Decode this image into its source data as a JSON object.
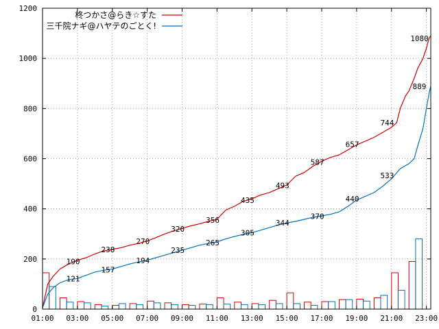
{
  "chart_data": {
    "type": "line",
    "title": "",
    "xlabel": "",
    "ylabel": "",
    "xlim": [
      1,
      23.25
    ],
    "ylim": [
      0,
      1200
    ],
    "x_tick_labels": [
      "01:00",
      "03:00",
      "05:00",
      "07:00",
      "09:00",
      "11:00",
      "13:00",
      "15:00",
      "17:00",
      "19:00",
      "21:00",
      "23:00"
    ],
    "x_tick_values": [
      1,
      3,
      5,
      7,
      9,
      11,
      13,
      15,
      17,
      19,
      21,
      23
    ],
    "y_tick_values": [
      0,
      200,
      400,
      600,
      800,
      1000,
      1200
    ],
    "y_tick_labels": [
      "0",
      "200",
      "400",
      "600",
      "800",
      "1000",
      "1200"
    ],
    "grid": true,
    "legend_position": "top-left",
    "series": [
      {
        "name": "柊つかさ@らき☆すた",
        "color": "#cc0000",
        "x": [
          1.0,
          1.3,
          1.6,
          2.0,
          2.5,
          3.0,
          3.5,
          4.0,
          4.5,
          5.0,
          5.5,
          6.0,
          6.5,
          7.0,
          7.5,
          8.0,
          8.5,
          9.0,
          9.5,
          10.0,
          10.5,
          11.0,
          11.5,
          12.0,
          12.5,
          13.0,
          13.5,
          14.0,
          14.5,
          15.0,
          15.5,
          16.0,
          16.5,
          17.0,
          17.5,
          18.0,
          18.5,
          19.0,
          19.5,
          20.0,
          20.5,
          21.0,
          21.3,
          21.5,
          21.8,
          22.0,
          22.3,
          22.5,
          22.8,
          23.0,
          23.15,
          23.25
        ],
        "values": [
          5,
          100,
          130,
          160,
          180,
          195,
          205,
          220,
          232,
          238,
          245,
          255,
          262,
          272,
          285,
          300,
          312,
          322,
          332,
          340,
          350,
          358,
          395,
          410,
          430,
          440,
          455,
          465,
          480,
          495,
          530,
          545,
          570,
          590,
          605,
          615,
          635,
          655,
          670,
          685,
          705,
          725,
          744,
          800,
          850,
          870,
          920,
          960,
          1000,
          1040,
          1080,
          1090
        ],
        "labels": [
          {
            "x": 2.75,
            "value": 190,
            "text": "190"
          },
          {
            "x": 4.75,
            "value": 238,
            "text": "238"
          },
          {
            "x": 6.75,
            "value": 270,
            "text": "270"
          },
          {
            "x": 8.75,
            "value": 320,
            "text": "320"
          },
          {
            "x": 10.75,
            "value": 356,
            "text": "356"
          },
          {
            "x": 12.75,
            "value": 435,
            "text": "435"
          },
          {
            "x": 14.75,
            "value": 493,
            "text": "493"
          },
          {
            "x": 16.75,
            "value": 587,
            "text": "587"
          },
          {
            "x": 18.75,
            "value": 657,
            "text": "657"
          },
          {
            "x": 20.75,
            "value": 744,
            "text": "744"
          },
          {
            "x": 22.6,
            "value": 1080,
            "text": "1080"
          }
        ]
      },
      {
        "name": "三千院ナギ@ハヤテのごとく!",
        "color": "#0070c0",
        "x": [
          1.0,
          1.3,
          1.6,
          2.0,
          2.5,
          3.0,
          3.5,
          4.0,
          4.5,
          5.0,
          5.5,
          6.0,
          6.5,
          7.0,
          7.5,
          8.0,
          8.5,
          9.0,
          9.5,
          10.0,
          10.5,
          11.0,
          11.5,
          12.0,
          12.5,
          13.0,
          13.5,
          14.0,
          14.5,
          15.0,
          15.5,
          16.0,
          16.5,
          17.0,
          17.5,
          18.0,
          18.5,
          19.0,
          19.5,
          20.0,
          20.5,
          21.0,
          21.5,
          22.0,
          22.3,
          22.5,
          22.8,
          23.0,
          23.15,
          23.25
        ],
        "values": [
          5,
          60,
          85,
          105,
          118,
          122,
          135,
          148,
          155,
          160,
          170,
          180,
          188,
          195,
          205,
          215,
          225,
          235,
          245,
          255,
          262,
          268,
          280,
          290,
          298,
          305,
          315,
          325,
          335,
          344,
          350,
          358,
          366,
          372,
          378,
          388,
          410,
          435,
          450,
          465,
          490,
          520,
          560,
          580,
          600,
          650,
          720,
          800,
          860,
          889
        ],
        "labels": [
          {
            "x": 2.75,
            "value": 121,
            "text": "121"
          },
          {
            "x": 4.75,
            "value": 157,
            "text": "157"
          },
          {
            "x": 6.75,
            "value": 194,
            "text": "194"
          },
          {
            "x": 8.75,
            "value": 235,
            "text": "235"
          },
          {
            "x": 10.75,
            "value": 265,
            "text": "265"
          },
          {
            "x": 12.75,
            "value": 305,
            "text": "305"
          },
          {
            "x": 14.75,
            "value": 344,
            "text": "344"
          },
          {
            "x": 16.75,
            "value": 370,
            "text": "370"
          },
          {
            "x": 18.75,
            "value": 440,
            "text": "440"
          },
          {
            "x": 20.75,
            "value": 533,
            "text": "533"
          },
          {
            "x": 22.6,
            "value": 889,
            "text": "889"
          }
        ]
      }
    ],
    "hourly_bars": {
      "hours": [
        1,
        2,
        3,
        4,
        5,
        6,
        7,
        8,
        9,
        10,
        11,
        12,
        13,
        14,
        15,
        16,
        17,
        18,
        19,
        20,
        21,
        22
      ],
      "series_a": [
        145,
        45,
        30,
        18,
        15,
        22,
        32,
        25,
        18,
        20,
        45,
        28,
        22,
        35,
        65,
        28,
        30,
        38,
        40,
        45,
        145,
        190
      ],
      "series_b": [
        90,
        28,
        25,
        12,
        22,
        18,
        25,
        18,
        15,
        18,
        20,
        18,
        18,
        22,
        22,
        15,
        30,
        38,
        32,
        55,
        75,
        280
      ]
    }
  }
}
